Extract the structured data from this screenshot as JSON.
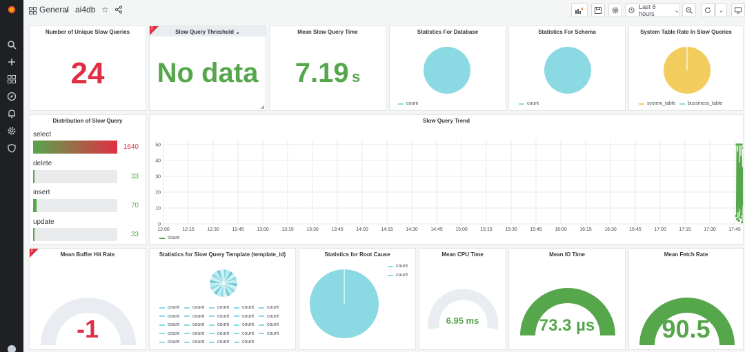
{
  "colors": {
    "red": "#e02f44",
    "green": "#56a64b",
    "cyan": "#8ad9e3",
    "yellow": "#f2cc5c"
  },
  "breadcrumb": {
    "folder": "General",
    "separator": "/",
    "dashboard": "ai4db"
  },
  "toolbar": {
    "time_range": "Last 6 hours"
  },
  "sidebar": {
    "icons": [
      "search-icon",
      "plus-icon",
      "dashboards-icon",
      "compass-icon",
      "bell-icon",
      "gear-icon",
      "shield-icon"
    ]
  },
  "panels": {
    "unique_slow": {
      "title": "Number of Unique Slow Queries",
      "value": "24"
    },
    "threshold": {
      "title": "Slow Query Threshold",
      "title_suffix": "⌄",
      "value": "No data",
      "badge": "!"
    },
    "mean_time": {
      "title": "Mean Slow Query Time",
      "value": "7.19",
      "unit": "s"
    },
    "stats_db": {
      "title": "Statistics For Database",
      "legend": [
        "count"
      ]
    },
    "stats_schema": {
      "title": "Statistics For Schema",
      "legend": [
        "count"
      ]
    },
    "system_table": {
      "title": "System Table Rate In Slow Queries",
      "legend": [
        "system_table",
        "bussiness_table"
      ]
    },
    "distribution": {
      "title": "Distribution of Slow Query",
      "items": [
        {
          "label": "select",
          "value": "1640",
          "fraction": 1.0
        },
        {
          "label": "delete",
          "value": "33",
          "fraction": 0.02
        },
        {
          "label": "insert",
          "value": "70",
          "fraction": 0.043
        },
        {
          "label": "update",
          "value": "33",
          "fraction": 0.02
        }
      ]
    },
    "trend": {
      "title": "Slow Query Trend",
      "legend": "count"
    },
    "buffer": {
      "title": "Mean Buffer Hit Rate",
      "value": "-1",
      "badge": "!"
    },
    "template": {
      "title": "Statistics for Slow Query Template (template_id)",
      "legend_label": "count"
    },
    "root_cause": {
      "title": "Statistics for Root Cause",
      "legend": [
        "count",
        "count"
      ]
    },
    "cpu": {
      "title": "Mean CPU Time",
      "value": "6.95 ms"
    },
    "io": {
      "title": "Mean IO Time",
      "value": "73.3 µs"
    },
    "fetch": {
      "title": "Mean Fetch Rate",
      "value": "90.5"
    }
  },
  "chart_data": {
    "type": "line",
    "title": "Slow Query Trend",
    "x_ticks": [
      "12:00",
      "12:15",
      "12:30",
      "12:45",
      "13:00",
      "13:15",
      "13:30",
      "13:45",
      "14:00",
      "14:15",
      "14:30",
      "14:45",
      "15:00",
      "15:15",
      "15:30",
      "15:45",
      "16:00",
      "16:15",
      "16:30",
      "16:45",
      "17:00",
      "17:15",
      "17:30",
      "17:45"
    ],
    "y_ticks": [
      0,
      10,
      20,
      30,
      40,
      50
    ],
    "ylim": [
      0,
      53
    ],
    "series": [
      {
        "name": "count",
        "color": "#56a64b",
        "x": [
          "17:46",
          "17:46",
          "17:46",
          "17:46",
          "17:47",
          "17:47",
          "17:47",
          "17:47",
          "17:48",
          "17:48",
          "17:48",
          "17:48",
          "17:49",
          "17:49",
          "17:49",
          "17:49",
          "17:50",
          "17:50",
          "17:50",
          "17:50"
        ],
        "values": [
          5,
          50,
          3,
          45,
          8,
          50,
          2,
          38,
          10,
          50,
          4,
          42,
          6,
          50,
          1,
          35,
          12,
          48,
          3,
          44
        ]
      }
    ]
  }
}
